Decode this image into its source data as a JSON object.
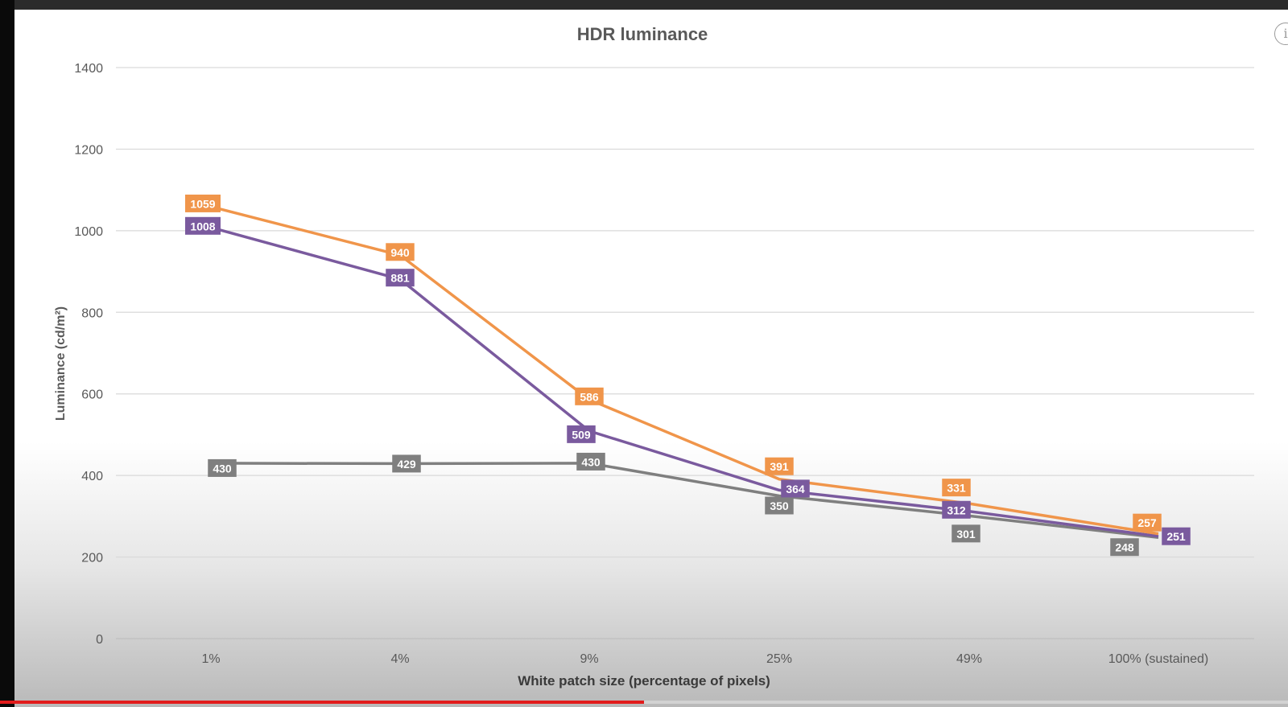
{
  "chart_data": {
    "type": "line",
    "title": "HDR luminance",
    "xlabel": "White patch size (percentage of pixels)",
    "ylabel": "Luminance (cd/m²)",
    "categories": [
      "1%",
      "4%",
      "9%",
      "25%",
      "49%",
      "100% (sustained)"
    ],
    "ylim": [
      0,
      1400
    ],
    "yticks": [
      0,
      200,
      400,
      600,
      800,
      1000,
      1200,
      1400
    ],
    "grid": true,
    "series": [
      {
        "color": "#F0954A",
        "values": [
          1059,
          940,
          586,
          391,
          331,
          257
        ]
      },
      {
        "color": "#7A5A9E",
        "values": [
          1008,
          881,
          509,
          364,
          312,
          251
        ]
      },
      {
        "color": "#7F7F7F",
        "values": [
          430,
          429,
          430,
          350,
          301,
          248
        ]
      }
    ]
  },
  "player": {
    "progress": 0.5,
    "info_icon": "info-icon"
  }
}
